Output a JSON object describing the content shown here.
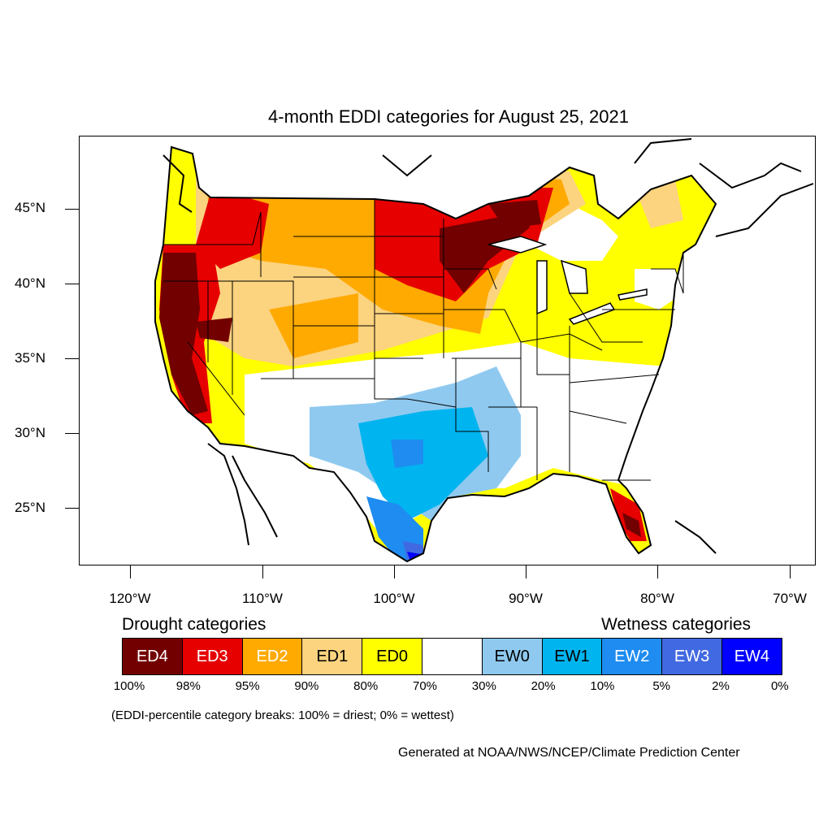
{
  "title": "4-month EDDI categories for August 25, 2021",
  "map": {
    "latitude_labels": [
      "45°N",
      "40°N",
      "35°N",
      "30°N",
      "25°N"
    ],
    "longitude_labels": [
      "120°W",
      "110°W",
      "100°W",
      "90°W",
      "80°W",
      "70°W"
    ]
  },
  "legend": {
    "drought_heading": "Drought categories",
    "wetness_heading": "Wetness categories",
    "categories": [
      {
        "label": "ED4",
        "color": "#730000",
        "text_color": "#ffffff"
      },
      {
        "label": "ED3",
        "color": "#e60000",
        "text_color": "#ffffff"
      },
      {
        "label": "ED2",
        "color": "#ffaa00",
        "text_color": "#ffffff"
      },
      {
        "label": "ED1",
        "color": "#fcd37f",
        "text_color": "#000000"
      },
      {
        "label": "ED0",
        "color": "#ffff00",
        "text_color": "#000000"
      },
      {
        "label": "",
        "color": "#ffffff",
        "text_color": "#000000"
      },
      {
        "label": "EW0",
        "color": "#8fc9ef",
        "text_color": "#000000"
      },
      {
        "label": "EW1",
        "color": "#00b4f0",
        "text_color": "#000000"
      },
      {
        "label": "EW2",
        "color": "#1e8cf0",
        "text_color": "#ffffff"
      },
      {
        "label": "EW3",
        "color": "#4169e1",
        "text_color": "#ffffff"
      },
      {
        "label": "EW4",
        "color": "#0000ff",
        "text_color": "#ffffff"
      }
    ],
    "percent_breaks": [
      "100%",
      "98%",
      "95%",
      "90%",
      "80%",
      "70%",
      "30%",
      "20%",
      "10%",
      "5%",
      "2%",
      "0%"
    ]
  },
  "note": "(EDDI-percentile category breaks: 100% = driest; 0% = wettest)",
  "credit": "Generated at NOAA/NWS/NCEP/Climate Prediction Center"
}
